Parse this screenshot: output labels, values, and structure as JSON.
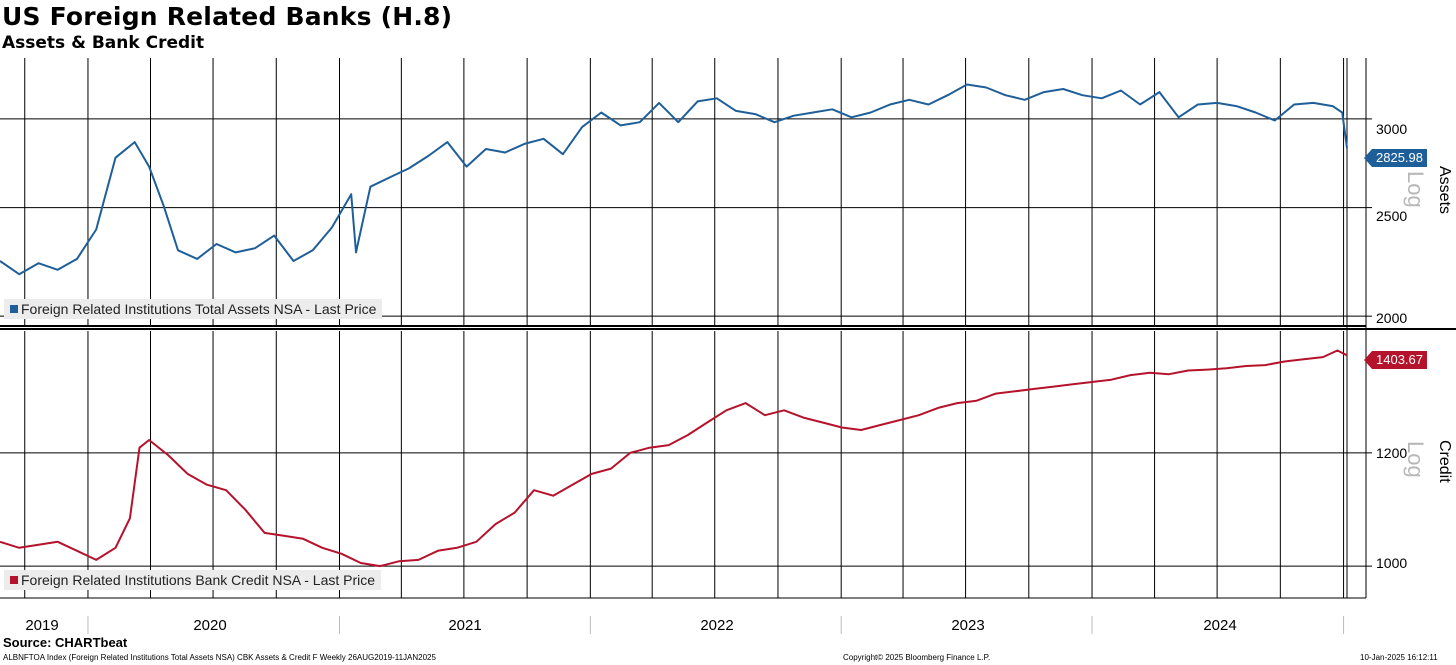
{
  "title": "US Foreign Related Banks (H.8)",
  "subtitle": "Assets & Bank Credit",
  "source": "Source: CHARTbeat",
  "footer_left": "ALBNFTOA Index (Foreign Related Institutions Total Assets NSA) CBK Assets & Credit F  Weekly 26AUG2019-11JAN2025",
  "footer_center": "Copyright© 2025 Bloomberg Finance L.P.",
  "footer_right": "10-Jan-2025 16:12:11",
  "x_axis_labels": [
    "2019",
    "2020",
    "2021",
    "2022",
    "2023",
    "2024"
  ],
  "colors": {
    "assets": "#1f5f99",
    "credit": "#b5122b",
    "grid": "#000000"
  },
  "chart_data": [
    {
      "type": "line",
      "panel_label": "Assets",
      "scale": "log",
      "scale_label": "Log",
      "legend": "Foreign Related Institutions Total Assets NSA - Last Price",
      "last_value_label": "2825.98",
      "ylim": [
        1960,
        3400
      ],
      "yticks": [
        2000,
        2500,
        3000
      ],
      "grid": true,
      "series": [
        {
          "name": "Foreign Related Institutions Total Assets NSA - Last Price",
          "x": [
            "2019-08-26",
            "2019-09-23",
            "2019-10-21",
            "2019-11-18",
            "2019-12-16",
            "2020-01-13",
            "2020-02-10",
            "2020-03-09",
            "2020-03-30",
            "2020-04-20",
            "2020-05-11",
            "2020-06-08",
            "2020-07-06",
            "2020-08-03",
            "2020-08-31",
            "2020-09-28",
            "2020-10-26",
            "2020-11-23",
            "2020-12-21",
            "2021-01-18",
            "2021-01-25",
            "2021-02-15",
            "2021-03-15",
            "2021-04-12",
            "2021-05-10",
            "2021-06-07",
            "2021-07-05",
            "2021-08-02",
            "2021-08-30",
            "2021-09-27",
            "2021-10-25",
            "2021-11-22",
            "2021-12-20",
            "2022-01-17",
            "2022-02-14",
            "2022-03-14",
            "2022-04-11",
            "2022-05-09",
            "2022-06-06",
            "2022-07-04",
            "2022-08-01",
            "2022-08-29",
            "2022-09-26",
            "2022-10-24",
            "2022-11-21",
            "2022-12-19",
            "2023-01-16",
            "2023-02-13",
            "2023-03-13",
            "2023-04-10",
            "2023-05-08",
            "2023-06-05",
            "2023-07-03",
            "2023-07-31",
            "2023-08-28",
            "2023-09-25",
            "2023-10-23",
            "2023-11-20",
            "2023-12-18",
            "2024-01-15",
            "2024-02-12",
            "2024-03-11",
            "2024-04-08",
            "2024-05-06",
            "2024-06-03",
            "2024-07-01",
            "2024-07-29",
            "2024-08-26",
            "2024-09-23",
            "2024-10-21",
            "2024-11-18",
            "2024-12-16",
            "2024-12-30",
            "2025-01-06"
          ],
          "values": [
            2240,
            2180,
            2230,
            2200,
            2250,
            2390,
            2770,
            2860,
            2720,
            2510,
            2290,
            2250,
            2320,
            2280,
            2300,
            2360,
            2240,
            2290,
            2400,
            2570,
            2280,
            2610,
            2660,
            2710,
            2780,
            2860,
            2720,
            2820,
            2800,
            2850,
            2880,
            2790,
            2950,
            3040,
            2960,
            2980,
            3100,
            2980,
            3110,
            3130,
            3050,
            3030,
            2980,
            3020,
            3040,
            3060,
            3010,
            3040,
            3090,
            3120,
            3090,
            3150,
            3220,
            3200,
            3150,
            3120,
            3170,
            3190,
            3150,
            3130,
            3180,
            3090,
            3170,
            3010,
            3090,
            3100,
            3080,
            3040,
            2990,
            3090,
            3100,
            3080,
            3040,
            2826
          ]
        }
      ]
    },
    {
      "type": "line",
      "panel_label": "Credit",
      "scale": "log",
      "scale_label": "Log",
      "legend": "Foreign Related Institutions Bank Credit NSA - Last Price",
      "last_value_label": "1403.67",
      "ylim": [
        950,
        1460
      ],
      "yticks": [
        1000,
        1200
      ],
      "grid": true,
      "series": [
        {
          "name": "Foreign Related Institutions Bank Credit NSA - Last Price",
          "x": [
            "2019-08-26",
            "2019-09-23",
            "2019-10-21",
            "2019-11-18",
            "2019-12-16",
            "2020-01-13",
            "2020-02-10",
            "2020-03-02",
            "2020-03-16",
            "2020-03-30",
            "2020-04-27",
            "2020-05-25",
            "2020-06-22",
            "2020-07-20",
            "2020-08-17",
            "2020-09-14",
            "2020-10-12",
            "2020-11-09",
            "2020-12-07",
            "2021-01-04",
            "2021-02-01",
            "2021-03-01",
            "2021-03-29",
            "2021-04-26",
            "2021-05-24",
            "2021-06-21",
            "2021-07-19",
            "2021-08-16",
            "2021-09-13",
            "2021-10-11",
            "2021-11-08",
            "2021-12-06",
            "2022-01-03",
            "2022-01-31",
            "2022-02-28",
            "2022-03-28",
            "2022-04-25",
            "2022-05-23",
            "2022-06-20",
            "2022-07-18",
            "2022-08-15",
            "2022-09-12",
            "2022-10-10",
            "2022-11-07",
            "2022-12-05",
            "2023-01-02",
            "2023-01-30",
            "2023-02-27",
            "2023-03-27",
            "2023-04-24",
            "2023-05-22",
            "2023-06-19",
            "2023-07-17",
            "2023-08-14",
            "2023-09-11",
            "2023-10-09",
            "2023-11-06",
            "2023-12-04",
            "2024-01-01",
            "2024-01-29",
            "2024-02-26",
            "2024-03-25",
            "2024-04-22",
            "2024-05-20",
            "2024-06-17",
            "2024-07-15",
            "2024-08-12",
            "2024-09-09",
            "2024-10-07",
            "2024-11-04",
            "2024-12-02",
            "2024-12-23",
            "2025-01-06"
          ],
          "values": [
            1040,
            1030,
            1035,
            1040,
            1025,
            1010,
            1030,
            1080,
            1210,
            1225,
            1195,
            1160,
            1140,
            1130,
            1095,
            1055,
            1050,
            1045,
            1030,
            1020,
            1005,
            1000,
            1008,
            1010,
            1025,
            1030,
            1040,
            1070,
            1090,
            1130,
            1120,
            1140,
            1160,
            1170,
            1200,
            1210,
            1215,
            1235,
            1260,
            1285,
            1300,
            1275,
            1285,
            1270,
            1260,
            1250,
            1245,
            1255,
            1265,
            1275,
            1290,
            1300,
            1305,
            1320,
            1325,
            1330,
            1335,
            1340,
            1345,
            1350,
            1360,
            1365,
            1362,
            1370,
            1372,
            1375,
            1380,
            1382,
            1390,
            1395,
            1400,
            1415,
            1404
          ]
        }
      ]
    }
  ]
}
